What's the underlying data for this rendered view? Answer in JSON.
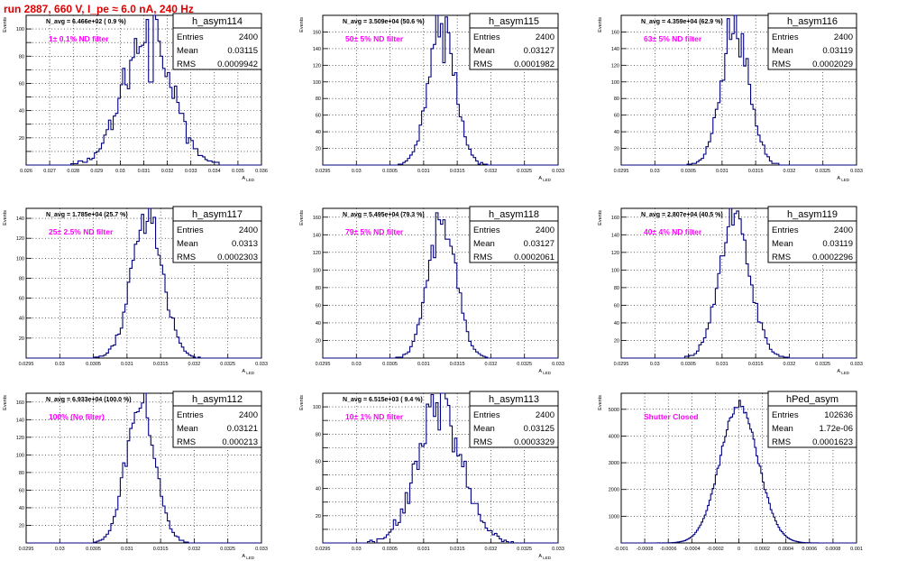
{
  "page_title": "run 2887,   660 V, I_pe ≈ 6.0 nA, 240 Hz",
  "colors": {
    "histogram": "#000080",
    "annotation": "#ff00ff",
    "title": "#e00000",
    "grid": "#000000"
  },
  "chart_data": [
    {
      "type": "histogram",
      "name": "h_asym114",
      "ylabel": "Events",
      "xlabel": "A_{LED}",
      "entries": "2400",
      "mean": "0.03115",
      "rms": "0.0009942",
      "navg": "N_avg = 6.466e+02 ( 0.9 %)",
      "filter": "1± 0.1% ND filter",
      "xlim": [
        0.026,
        0.036
      ],
      "ylim": [
        0,
        110
      ],
      "xticks": [
        0.026,
        0.027,
        0.028,
        0.029,
        0.03,
        0.031,
        0.032,
        0.033,
        0.034,
        0.035,
        0.036
      ],
      "xtick_labels": [
        "0.026",
        "0.027",
        "0.028",
        "0.029",
        "0.03",
        "0.031",
        "0.032",
        "0.033",
        "0.034",
        "0.035",
        "0.036"
      ],
      "yticks": [
        0,
        10,
        20,
        30,
        40,
        50,
        60,
        70,
        80,
        90,
        100
      ],
      "ytick_labels": [
        "",
        "",
        "20",
        "",
        "40",
        "",
        "60",
        "",
        "80",
        "",
        "100"
      ],
      "sigma": 0.0009942,
      "peak": 100,
      "nbins": 100
    },
    {
      "type": "histogram",
      "name": "h_asym115",
      "ylabel": "Events",
      "xlabel": "A_{LED}",
      "entries": "2400",
      "mean": "0.03127",
      "rms": "0.0001982",
      "navg": "N_avg = 3.509e+04 (50.6 %)",
      "filter": "50± 5% ND filter",
      "xlim": [
        0.0295,
        0.033
      ],
      "ylim": [
        0,
        180
      ],
      "xticks": [
        0.0295,
        0.03,
        0.0305,
        0.031,
        0.0315,
        0.032,
        0.0325,
        0.033
      ],
      "xtick_labels": [
        "0.0295",
        "0.03",
        "0.0305",
        "0.031",
        "0.0315",
        "0.032",
        "0.0325",
        "0.033"
      ],
      "yticks": [
        0,
        20,
        40,
        60,
        80,
        100,
        120,
        140,
        160
      ],
      "ytick_labels": [
        "",
        "20",
        "40",
        "60",
        "80",
        "100",
        "120",
        "140",
        "160"
      ],
      "sigma": 0.0001982,
      "peak": 170,
      "nbins": 100
    },
    {
      "type": "histogram",
      "name": "h_asym116",
      "ylabel": "Events",
      "xlabel": "A_{LED}",
      "entries": "2400",
      "mean": "0.03119",
      "rms": "0.0002029",
      "navg": "N_avg = 4.359e+04 (62.9 %)",
      "filter": "63± 5% ND filter",
      "xlim": [
        0.0295,
        0.033
      ],
      "ylim": [
        0,
        180
      ],
      "xticks": [
        0.0295,
        0.03,
        0.0305,
        0.031,
        0.0315,
        0.032,
        0.0325,
        0.033
      ],
      "xtick_labels": [
        "0.0295",
        "0.03",
        "0.0305",
        "0.031",
        "0.0315",
        "0.032",
        "0.0325",
        "0.033"
      ],
      "yticks": [
        0,
        20,
        40,
        60,
        80,
        100,
        120,
        140,
        160
      ],
      "ytick_labels": [
        "",
        "20",
        "40",
        "60",
        "80",
        "100",
        "120",
        "140",
        "160"
      ],
      "sigma": 0.0002029,
      "peak": 168,
      "nbins": 100
    },
    {
      "type": "histogram",
      "name": "h_asym117",
      "ylabel": "Events",
      "xlabel": "A_{LED}",
      "entries": "2400",
      "mean": "0.0313",
      "rms": "0.0002303",
      "navg": "N_avg = 1.785e+04 (25.7 %)",
      "filter": "25± 2.5% ND filter",
      "xlim": [
        0.0295,
        0.033
      ],
      "ylim": [
        0,
        150
      ],
      "xticks": [
        0.0295,
        0.03,
        0.0305,
        0.031,
        0.0315,
        0.032,
        0.0325,
        0.033
      ],
      "xtick_labels": [
        "0.0295",
        "0.03",
        "0.0305",
        "0.031",
        "0.0315",
        "0.032",
        "0.0325",
        "0.033"
      ],
      "yticks": [
        0,
        20,
        40,
        60,
        80,
        100,
        120,
        140
      ],
      "ytick_labels": [
        "",
        "20",
        "40",
        "60",
        "80",
        "100",
        "120",
        "140"
      ],
      "sigma": 0.0002303,
      "peak": 140,
      "nbins": 100
    },
    {
      "type": "histogram",
      "name": "h_asym118",
      "ylabel": "Events",
      "xlabel": "A_{LED}",
      "entries": "2400",
      "mean": "0.03127",
      "rms": "0.0002061",
      "navg": "N_avg = 5.495e+04 (79.3 %)",
      "filter": "79± 5% ND filter",
      "xlim": [
        0.0295,
        0.033
      ],
      "ylim": [
        0,
        170
      ],
      "xticks": [
        0.0295,
        0.03,
        0.0305,
        0.031,
        0.0315,
        0.032,
        0.0325,
        0.033
      ],
      "xtick_labels": [
        "0.0295",
        "0.03",
        "0.0305",
        "0.031",
        "0.0315",
        "0.032",
        "0.0325",
        "0.033"
      ],
      "yticks": [
        0,
        20,
        40,
        60,
        80,
        100,
        120,
        140,
        160
      ],
      "ytick_labels": [
        "",
        "20",
        "40",
        "60",
        "80",
        "100",
        "120",
        "140",
        "160"
      ],
      "sigma": 0.0002061,
      "peak": 162,
      "nbins": 100
    },
    {
      "type": "histogram",
      "name": "h_asym119",
      "ylabel": "Events",
      "xlabel": "A_{LED}",
      "entries": "2400",
      "mean": "0.03119",
      "rms": "0.0002296",
      "navg": "N_avg = 2.807e+04 (40.5 %)",
      "filter": "40± 4% ND filter",
      "xlim": [
        0.0295,
        0.033
      ],
      "ylim": [
        0,
        170
      ],
      "xticks": [
        0.0295,
        0.03,
        0.0305,
        0.031,
        0.0315,
        0.032,
        0.0325,
        0.033
      ],
      "xtick_labels": [
        "0.0295",
        "0.03",
        "0.0305",
        "0.031",
        "0.0315",
        "0.032",
        "0.0325",
        "0.033"
      ],
      "yticks": [
        0,
        20,
        40,
        60,
        80,
        100,
        120,
        140,
        160
      ],
      "ytick_labels": [
        "",
        "20",
        "40",
        "60",
        "80",
        "100",
        "120",
        "140",
        "160"
      ],
      "sigma": 0.0002296,
      "peak": 160,
      "nbins": 100
    },
    {
      "type": "histogram",
      "name": "h_asym112",
      "ylabel": "Events",
      "xlabel": "A_{LED}",
      "entries": "2400",
      "mean": "0.03121",
      "rms": "0.000213",
      "navg": "N_avg = 6.933e+04 (100.0 %)",
      "filter": "100% (No filter)",
      "xlim": [
        0.0295,
        0.033
      ],
      "ylim": [
        0,
        170
      ],
      "xticks": [
        0.0295,
        0.03,
        0.0305,
        0.031,
        0.0315,
        0.032,
        0.0325,
        0.033
      ],
      "xtick_labels": [
        "0.0295",
        "0.03",
        "0.0305",
        "0.031",
        "0.0315",
        "0.032",
        "0.0325",
        "0.033"
      ],
      "yticks": [
        0,
        20,
        40,
        60,
        80,
        100,
        120,
        140,
        160
      ],
      "ytick_labels": [
        "",
        "20",
        "40",
        "60",
        "80",
        "100",
        "120",
        "140",
        "160"
      ],
      "sigma": 0.000213,
      "peak": 163,
      "nbins": 100
    },
    {
      "type": "histogram",
      "name": "h_asym113",
      "ylabel": "Events",
      "xlabel": "A_{LED}",
      "entries": "2400",
      "mean": "0.03125",
      "rms": "0.0003329",
      "navg": "N_avg = 6.515e+03 ( 9.4 %)",
      "filter": "10± 1% ND filter",
      "xlim": [
        0.0295,
        0.033
      ],
      "ylim": [
        0,
        110
      ],
      "xticks": [
        0.0295,
        0.03,
        0.0305,
        0.031,
        0.0315,
        0.032,
        0.0325,
        0.033
      ],
      "xtick_labels": [
        "0.0295",
        "0.03",
        "0.0305",
        "0.031",
        "0.0315",
        "0.032",
        "0.0325",
        "0.033"
      ],
      "yticks": [
        0,
        10,
        20,
        30,
        40,
        50,
        60,
        70,
        80,
        90,
        100
      ],
      "ytick_labels": [
        "",
        "",
        "20",
        "",
        "40",
        "",
        "60",
        "",
        "80",
        "",
        "100"
      ],
      "sigma": 0.0003329,
      "peak": 100,
      "nbins": 100
    },
    {
      "type": "histogram",
      "name": "hPed_asym",
      "ylabel": "Events",
      "xlabel": "",
      "entries": "102636",
      "mean": "1.72e-06",
      "rms": "0.0001623",
      "navg": "",
      "filter": "Shutter Closed",
      "xlim": [
        -0.001,
        0.001
      ],
      "ylim": [
        0,
        5600
      ],
      "xticks": [
        -0.001,
        -0.0008,
        -0.0006,
        -0.0004,
        -0.0002,
        0,
        0.0002,
        0.0004,
        0.0006,
        0.0008,
        0.001
      ],
      "xtick_labels": [
        "-0.001",
        "-0.0008",
        "-0.0006",
        "-0.0004",
        "-0.0002",
        "0",
        "0.0002",
        "0.0004",
        "0.0006",
        "0.0008",
        "0.001"
      ],
      "yticks": [
        0,
        1000,
        2000,
        3000,
        4000,
        5000
      ],
      "ytick_labels": [
        "",
        "1000",
        "2000",
        "3000",
        "4000",
        "5000"
      ],
      "sigma": 0.0001623,
      "peak": 5150,
      "nbins": 150
    }
  ]
}
